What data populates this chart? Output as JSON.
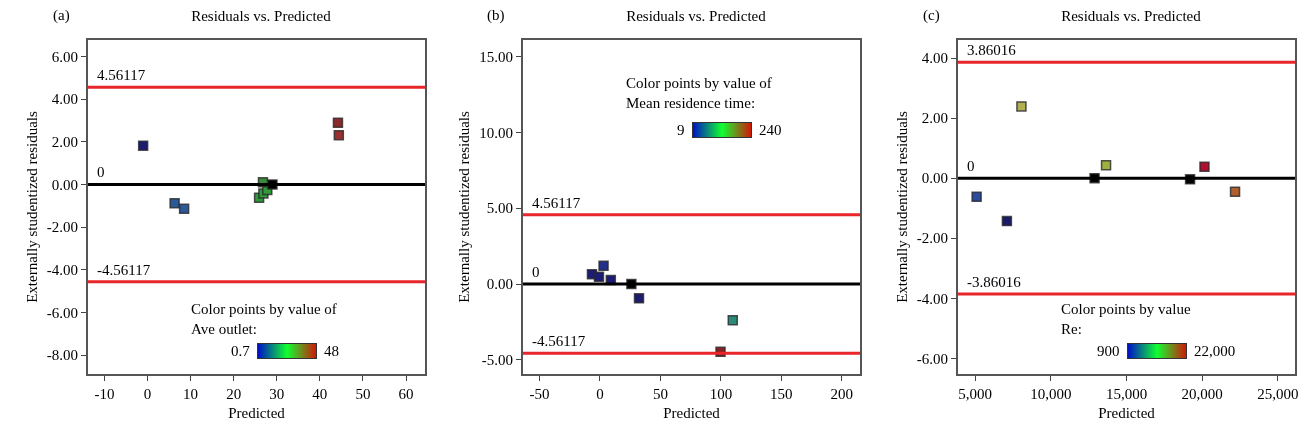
{
  "chart_data": [
    {
      "type": "scatter",
      "title": "Residuals vs. Predicted",
      "annotations": [
        "(a)",
        "Color points by value of\nAve outlet:",
        "0.7",
        "48"
      ],
      "xlabel": "Predicted",
      "ylabel": "Externally studentized residuals",
      "marker": "square",
      "grid": false,
      "xlim": [
        -13.8,
        64.4
      ],
      "xticks": [
        -10,
        0,
        10,
        20,
        30,
        40,
        50,
        60
      ],
      "ylim": [
        -8.88,
        6.77
      ],
      "yticks": [
        {
          "value": -8,
          "label": "-8.00"
        },
        {
          "value": -6,
          "label": "-6.00"
        },
        {
          "value": -4,
          "label": "-4.00"
        },
        {
          "value": -2,
          "label": "-2.00"
        },
        {
          "value": 0,
          "label": "0.00"
        },
        {
          "value": 2,
          "label": "2.00"
        },
        {
          "value": 4,
          "label": "4.00"
        },
        {
          "value": 6,
          "label": "6.00"
        }
      ],
      "ref_lines": [
        {
          "axis": "y",
          "value": 4.56117,
          "label": "4.56117",
          "color": "#e8262a"
        },
        {
          "axis": "y",
          "value": 0,
          "label": "0",
          "color": "#000000"
        },
        {
          "axis": "y",
          "value": -4.56117,
          "label": "-4.56117",
          "color": "#e8262a"
        }
      ],
      "series": [
        {
          "x": [
            -1,
            6.3,
            8.5,
            25.9,
            26.9,
            27.8,
            26.8,
            44.2,
            44.4
          ],
          "values": [
            1.82,
            -0.88,
            -1.14,
            -0.62,
            -0.42,
            -0.26,
            0.1,
            2.89,
            2.31
          ],
          "colors": [
            "#1c1c70",
            "#2a5a9a",
            "#2a5a9a",
            "#2f9a3a",
            "#2f9a3a",
            "#2f9a3a",
            "#3a8a3a",
            "#8b2a2a",
            "#9a3030"
          ]
        },
        {
          "x": [
            29
          ],
          "values": [
            0
          ],
          "color": "#000000"
        }
      ]
    },
    {
      "type": "scatter",
      "title": "Residuals vs. Predicted",
      "annotations": [
        "(b)",
        "Color points by value of\nMean residence time:",
        "9",
        "240"
      ],
      "xlabel": "Predicted",
      "ylabel": "Externally studentized residuals",
      "marker": "square",
      "grid": false,
      "xlim": [
        -63.6,
        215
      ],
      "xticks": [
        -50,
        0,
        50,
        100,
        150,
        200
      ],
      "ylim": [
        -5.93,
        16.09
      ],
      "yticks": [
        {
          "value": -5,
          "label": "-5.00"
        },
        {
          "value": 0,
          "label": "0.00"
        },
        {
          "value": 5,
          "label": "5.00"
        },
        {
          "value": 10,
          "label": "10.00"
        },
        {
          "value": 15,
          "label": "15.00"
        }
      ],
      "ref_lines": [
        {
          "axis": "y",
          "value": 4.56117,
          "label": "4.56117",
          "color": "#e8262a"
        },
        {
          "axis": "y",
          "value": 0,
          "label": "0",
          "color": "#000000"
        },
        {
          "axis": "y",
          "value": -4.56117,
          "label": "-4.56117",
          "color": "#e8262a"
        }
      ],
      "series": [
        {
          "x": [
            -6.6,
            -0.8,
            3,
            9,
            32.3,
            109.8,
            99.7
          ],
          "values": [
            0.65,
            0.48,
            1.2,
            0.26,
            -0.94,
            -2.38,
            -4.47
          ],
          "colors": [
            "#1c1c78",
            "#1c1c78",
            "#24308a",
            "#1c1c78",
            "#1c1c70",
            "#2a8a7a",
            "#8a2020"
          ]
        },
        {
          "x": [
            26
          ],
          "values": [
            0
          ],
          "color": "#000000"
        }
      ]
    },
    {
      "type": "scatter",
      "title": "Residuals vs. Predicted",
      "annotations": [
        "(c)",
        "Color points by value\nRe:",
        "900",
        "22,000"
      ],
      "xlabel": "Predicted",
      "ylabel": "Externally studentized residuals",
      "marker": "square",
      "grid": false,
      "xlim": [
        3870,
        26130
      ],
      "xticks": [
        {
          "value": 5000,
          "label": "5,000"
        },
        {
          "value": 10000,
          "label": "10,000"
        },
        {
          "value": 15000,
          "label": "15,000"
        },
        {
          "value": 20000,
          "label": "20,000"
        },
        {
          "value": 25000,
          "label": "25,000"
        }
      ],
      "ylim": [
        -6.52,
        4.6
      ],
      "yticks": [
        {
          "value": -6,
          "label": "-6.00"
        },
        {
          "value": -4,
          "label": "-4.00"
        },
        {
          "value": -2,
          "label": "-2.00"
        },
        {
          "value": 0,
          "label": "0.00"
        },
        {
          "value": 2,
          "label": "2.00"
        },
        {
          "value": 4,
          "label": "4.00"
        }
      ],
      "ref_lines": [
        {
          "axis": "y",
          "value": 3.86016,
          "label": "3.86016",
          "color": "#e8262a"
        },
        {
          "axis": "y",
          "value": 0,
          "label": "0",
          "color": "#000000"
        },
        {
          "axis": "y",
          "value": -3.86016,
          "label": "-3.86016",
          "color": "#e8262a"
        }
      ],
      "series": [
        {
          "x": [
            5100,
            7100,
            8060,
            13650,
            20150,
            22170
          ],
          "values": [
            -0.62,
            -1.43,
            2.39,
            0.43,
            0.38,
            -0.45
          ],
          "colors": [
            "#2a4aa0",
            "#1a1a6a",
            "#b0b050",
            "#a0b040",
            "#b01030",
            "#b06030"
          ]
        },
        {
          "x": [
            12890,
            19200
          ],
          "values": [
            0,
            -0.04
          ],
          "color": "#000000"
        }
      ]
    }
  ]
}
